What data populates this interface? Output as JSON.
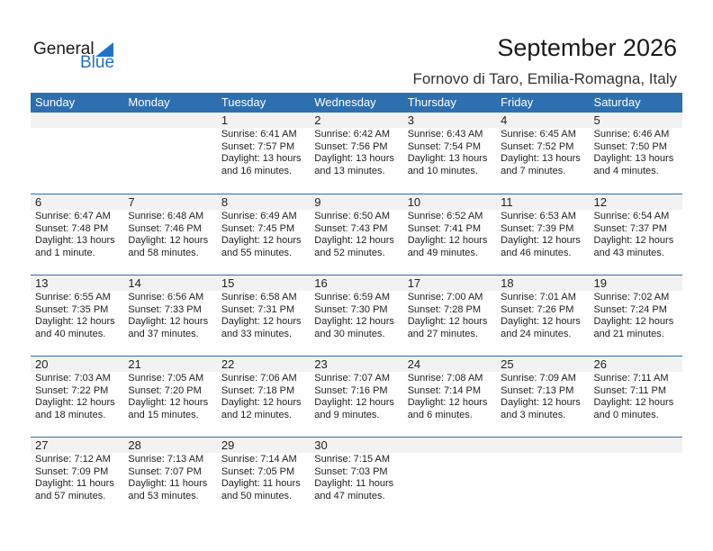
{
  "logo": {
    "general": "General",
    "blue": "Blue"
  },
  "title": "September 2026",
  "subtitle": "Fornovo di Taro, Emilia-Romagna, Italy",
  "colors": {
    "header": "#2e6fb0",
    "brand": "#2273c4",
    "daterow": "#f2f2f2"
  },
  "days": [
    "Sunday",
    "Monday",
    "Tuesday",
    "Wednesday",
    "Thursday",
    "Friday",
    "Saturday"
  ],
  "weeks": [
    [
      null,
      null,
      {
        "d": "1",
        "rise": "Sunrise: 6:41 AM",
        "set": "Sunset: 7:57 PM",
        "dl": "Daylight: 13 hours",
        "dl2": "and 16 minutes."
      },
      {
        "d": "2",
        "rise": "Sunrise: 6:42 AM",
        "set": "Sunset: 7:56 PM",
        "dl": "Daylight: 13 hours",
        "dl2": "and 13 minutes."
      },
      {
        "d": "3",
        "rise": "Sunrise: 6:43 AM",
        "set": "Sunset: 7:54 PM",
        "dl": "Daylight: 13 hours",
        "dl2": "and 10 minutes."
      },
      {
        "d": "4",
        "rise": "Sunrise: 6:45 AM",
        "set": "Sunset: 7:52 PM",
        "dl": "Daylight: 13 hours",
        "dl2": "and 7 minutes."
      },
      {
        "d": "5",
        "rise": "Sunrise: 6:46 AM",
        "set": "Sunset: 7:50 PM",
        "dl": "Daylight: 13 hours",
        "dl2": "and 4 minutes."
      }
    ],
    [
      {
        "d": "6",
        "rise": "Sunrise: 6:47 AM",
        "set": "Sunset: 7:48 PM",
        "dl": "Daylight: 13 hours",
        "dl2": "and 1 minute."
      },
      {
        "d": "7",
        "rise": "Sunrise: 6:48 AM",
        "set": "Sunset: 7:46 PM",
        "dl": "Daylight: 12 hours",
        "dl2": "and 58 minutes."
      },
      {
        "d": "8",
        "rise": "Sunrise: 6:49 AM",
        "set": "Sunset: 7:45 PM",
        "dl": "Daylight: 12 hours",
        "dl2": "and 55 minutes."
      },
      {
        "d": "9",
        "rise": "Sunrise: 6:50 AM",
        "set": "Sunset: 7:43 PM",
        "dl": "Daylight: 12 hours",
        "dl2": "and 52 minutes."
      },
      {
        "d": "10",
        "rise": "Sunrise: 6:52 AM",
        "set": "Sunset: 7:41 PM",
        "dl": "Daylight: 12 hours",
        "dl2": "and 49 minutes."
      },
      {
        "d": "11",
        "rise": "Sunrise: 6:53 AM",
        "set": "Sunset: 7:39 PM",
        "dl": "Daylight: 12 hours",
        "dl2": "and 46 minutes."
      },
      {
        "d": "12",
        "rise": "Sunrise: 6:54 AM",
        "set": "Sunset: 7:37 PM",
        "dl": "Daylight: 12 hours",
        "dl2": "and 43 minutes."
      }
    ],
    [
      {
        "d": "13",
        "rise": "Sunrise: 6:55 AM",
        "set": "Sunset: 7:35 PM",
        "dl": "Daylight: 12 hours",
        "dl2": "and 40 minutes."
      },
      {
        "d": "14",
        "rise": "Sunrise: 6:56 AM",
        "set": "Sunset: 7:33 PM",
        "dl": "Daylight: 12 hours",
        "dl2": "and 37 minutes."
      },
      {
        "d": "15",
        "rise": "Sunrise: 6:58 AM",
        "set": "Sunset: 7:31 PM",
        "dl": "Daylight: 12 hours",
        "dl2": "and 33 minutes."
      },
      {
        "d": "16",
        "rise": "Sunrise: 6:59 AM",
        "set": "Sunset: 7:30 PM",
        "dl": "Daylight: 12 hours",
        "dl2": "and 30 minutes."
      },
      {
        "d": "17",
        "rise": "Sunrise: 7:00 AM",
        "set": "Sunset: 7:28 PM",
        "dl": "Daylight: 12 hours",
        "dl2": "and 27 minutes."
      },
      {
        "d": "18",
        "rise": "Sunrise: 7:01 AM",
        "set": "Sunset: 7:26 PM",
        "dl": "Daylight: 12 hours",
        "dl2": "and 24 minutes."
      },
      {
        "d": "19",
        "rise": "Sunrise: 7:02 AM",
        "set": "Sunset: 7:24 PM",
        "dl": "Daylight: 12 hours",
        "dl2": "and 21 minutes."
      }
    ],
    [
      {
        "d": "20",
        "rise": "Sunrise: 7:03 AM",
        "set": "Sunset: 7:22 PM",
        "dl": "Daylight: 12 hours",
        "dl2": "and 18 minutes."
      },
      {
        "d": "21",
        "rise": "Sunrise: 7:05 AM",
        "set": "Sunset: 7:20 PM",
        "dl": "Daylight: 12 hours",
        "dl2": "and 15 minutes."
      },
      {
        "d": "22",
        "rise": "Sunrise: 7:06 AM",
        "set": "Sunset: 7:18 PM",
        "dl": "Daylight: 12 hours",
        "dl2": "and 12 minutes."
      },
      {
        "d": "23",
        "rise": "Sunrise: 7:07 AM",
        "set": "Sunset: 7:16 PM",
        "dl": "Daylight: 12 hours",
        "dl2": "and 9 minutes."
      },
      {
        "d": "24",
        "rise": "Sunrise: 7:08 AM",
        "set": "Sunset: 7:14 PM",
        "dl": "Daylight: 12 hours",
        "dl2": "and 6 minutes."
      },
      {
        "d": "25",
        "rise": "Sunrise: 7:09 AM",
        "set": "Sunset: 7:13 PM",
        "dl": "Daylight: 12 hours",
        "dl2": "and 3 minutes."
      },
      {
        "d": "26",
        "rise": "Sunrise: 7:11 AM",
        "set": "Sunset: 7:11 PM",
        "dl": "Daylight: 12 hours",
        "dl2": "and 0 minutes."
      }
    ],
    [
      {
        "d": "27",
        "rise": "Sunrise: 7:12 AM",
        "set": "Sunset: 7:09 PM",
        "dl": "Daylight: 11 hours",
        "dl2": "and 57 minutes."
      },
      {
        "d": "28",
        "rise": "Sunrise: 7:13 AM",
        "set": "Sunset: 7:07 PM",
        "dl": "Daylight: 11 hours",
        "dl2": "and 53 minutes."
      },
      {
        "d": "29",
        "rise": "Sunrise: 7:14 AM",
        "set": "Sunset: 7:05 PM",
        "dl": "Daylight: 11 hours",
        "dl2": "and 50 minutes."
      },
      {
        "d": "30",
        "rise": "Sunrise: 7:15 AM",
        "set": "Sunset: 7:03 PM",
        "dl": "Daylight: 11 hours",
        "dl2": "and 47 minutes."
      },
      null,
      null,
      null
    ]
  ]
}
